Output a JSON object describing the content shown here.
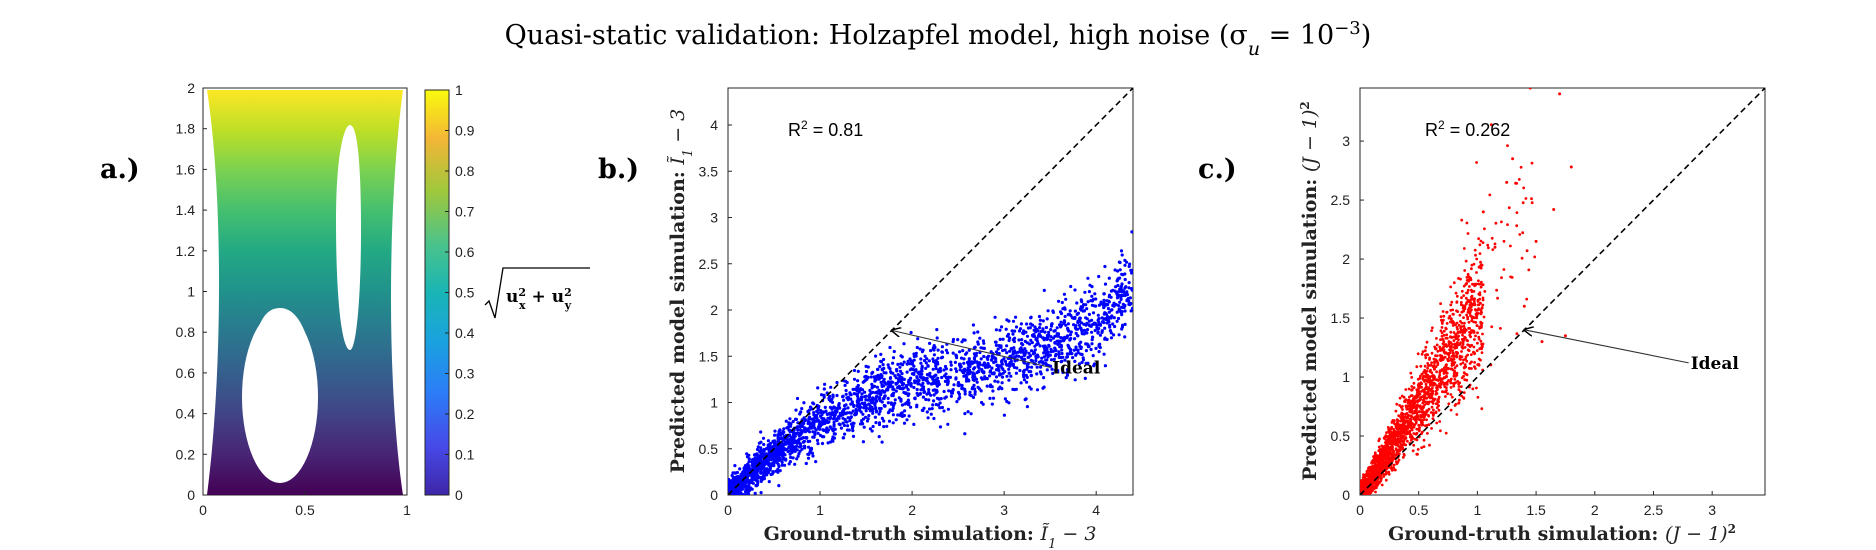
{
  "figure_title": "Quasi-static validation: Holzapfel model, high noise (σ",
  "figure_title_sub": "u",
  "figure_title_eq": " =  10",
  "figure_title_exp": "−3",
  "figure_title_close": ")",
  "panels": {
    "a": {
      "label": "a.)"
    },
    "b": {
      "label": "b.)"
    },
    "c": {
      "label": "c.)"
    }
  },
  "colorbar": {
    "label_symbol": "√",
    "label_expr_a": "u",
    "label_sub_a": "x",
    "label_plus": " + ",
    "label_expr_b": "u",
    "label_sub_b": "y",
    "label_sup": "2",
    "colormap": "viridis"
  },
  "chart_data": [
    {
      "id": "a",
      "type": "heatmap",
      "title": "",
      "xlabel": "",
      "ylabel": "",
      "xlim": [
        0,
        1
      ],
      "ylim": [
        0,
        2
      ],
      "xticks": [
        "0",
        "0.5",
        "1"
      ],
      "yticks": [
        "0",
        "0.2",
        "0.4",
        "0.6",
        "0.8",
        "1",
        "1.2",
        "1.4",
        "1.6",
        "1.8",
        "2"
      ],
      "colorbar_ticks": [
        "0",
        "0.1",
        "0.2",
        "0.3",
        "0.4",
        "0.5",
        "0.6",
        "0.7",
        "0.8",
        "0.9",
        "1"
      ],
      "clim": [
        0,
        1
      ],
      "domain": {
        "waist_x": [
          0.02,
          0.98
        ],
        "hole1": {
          "cx": 0.38,
          "cy": 0.62,
          "rx": 0.18,
          "ry": 0.35
        },
        "hole2": {
          "cx": 0.72,
          "cy": 1.38,
          "rx": 0.12,
          "ry": 0.62
        }
      }
    },
    {
      "id": "b",
      "type": "scatter",
      "title": "",
      "xlabel_text": "Ground-truth simulation: ",
      "xlabel_math": "Ĩ",
      "xlabel_sub": "1",
      "xlabel_tail": " − 3",
      "ylabel_text": "Predicted model simulation: ",
      "ylabel_math": "Ĩ",
      "ylabel_sub": "1",
      "ylabel_tail": " − 3",
      "xlim": [
        0,
        4.4
      ],
      "ylim": [
        0,
        4.4
      ],
      "xticks": [
        0,
        1,
        2,
        3,
        4
      ],
      "yticks": [
        0,
        0.5,
        1,
        1.5,
        2,
        2.5,
        3,
        3.5,
        4
      ],
      "color": "#0000ff",
      "r2_label": "R",
      "r2_sup": "2",
      "r2_value": " = 0.81",
      "ideal_label": "Ideal",
      "ideal_line": [
        [
          0,
          0
        ],
        [
          4.4,
          4.4
        ]
      ],
      "arrow_tip": [
        1.78,
        1.78
      ],
      "arrow_tail": [
        3.5,
        1.38
      ],
      "trend": {
        "x": [
          0,
          0.5,
          1,
          1.5,
          2,
          2.5,
          3,
          3.5,
          4,
          4.4
        ],
        "y": [
          0,
          0.45,
          0.8,
          1.02,
          1.18,
          1.32,
          1.45,
          1.6,
          1.85,
          2.3
        ]
      }
    },
    {
      "id": "c",
      "type": "scatter",
      "title": "",
      "xlabel_text": "Ground-truth simulation: ",
      "xlabel_math": "(J − 1)",
      "xlabel_sup": "2",
      "ylabel_text": "Predicted model simulation: ",
      "ylabel_math": "(J − 1)",
      "ylabel_sup": "2",
      "xlim": [
        0,
        3.45
      ],
      "ylim": [
        0,
        3.45
      ],
      "xticks": [
        0,
        0.5,
        1,
        1.5,
        2,
        2.5,
        3
      ],
      "yticks": [
        0,
        0.5,
        1,
        1.5,
        2,
        2.5,
        3
      ],
      "color": "#ff0000",
      "r2_label": "R",
      "r2_sup": "2",
      "r2_value": " = 0.262",
      "ideal_label": "Ideal",
      "ideal_line": [
        [
          0,
          0
        ],
        [
          3.45,
          3.45
        ]
      ],
      "arrow_tip": [
        1.4,
        1.4
      ],
      "arrow_tail": [
        2.8,
        1.12
      ],
      "outliers": [
        [
          1.45,
          3.45
        ],
        [
          1.7,
          3.4
        ],
        [
          1.3,
          2.85
        ],
        [
          1.8,
          2.78
        ],
        [
          1.65,
          2.42
        ],
        [
          1.5,
          2.15
        ],
        [
          1.4,
          1.6
        ],
        [
          1.55,
          1.3
        ],
        [
          1.75,
          1.35
        ],
        [
          1.15,
          2.1
        ],
        [
          1.05,
          2.4
        ],
        [
          1.25,
          2.65
        ]
      ]
    }
  ]
}
